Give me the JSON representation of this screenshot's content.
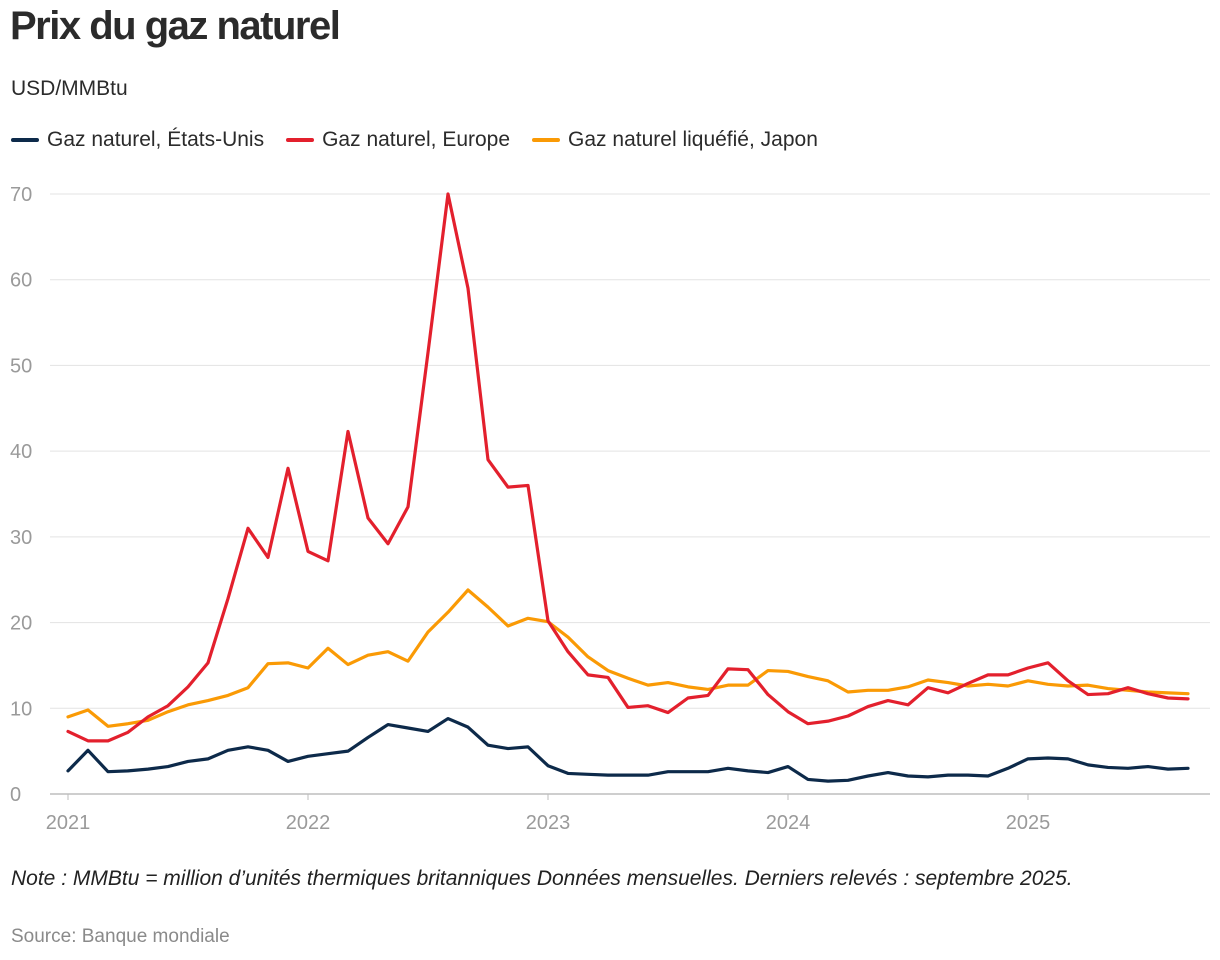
{
  "chart_data": {
    "type": "line",
    "title": "Prix du gaz naturel",
    "subtitle": "USD/MMBtu",
    "ylim": [
      0,
      70
    ],
    "yticks": [
      "0",
      "10",
      "20",
      "30",
      "40",
      "50",
      "60",
      "70"
    ],
    "xlim": [
      2021,
      2025.75
    ],
    "xticks": [
      {
        "value": 2021,
        "label": "2021"
      },
      {
        "value": 2022,
        "label": "2022"
      },
      {
        "value": 2023,
        "label": "2023"
      },
      {
        "value": 2024,
        "label": "2024"
      },
      {
        "value": 2025,
        "label": "2025"
      }
    ],
    "x_start": 2021.0,
    "x_step_months": 1,
    "grid": true,
    "legend_position": "top-left",
    "series": [
      {
        "name": "Gaz naturel, États-Unis",
        "color": "#0d2a4a",
        "values": [
          2.7,
          5.1,
          2.6,
          2.7,
          2.9,
          3.2,
          3.8,
          4.1,
          5.1,
          5.5,
          5.1,
          3.8,
          4.4,
          4.7,
          5.0,
          6.6,
          8.1,
          7.7,
          7.3,
          8.8,
          7.8,
          5.7,
          5.3,
          5.5,
          3.3,
          2.4,
          2.3,
          2.2,
          2.2,
          2.2,
          2.6,
          2.6,
          2.6,
          3.0,
          2.7,
          2.5,
          3.2,
          1.7,
          1.5,
          1.6,
          2.1,
          2.5,
          2.1,
          2.0,
          2.2,
          2.2,
          2.1,
          3.0,
          4.1,
          4.2,
          4.1,
          3.4,
          3.1,
          3.0,
          3.2,
          2.9,
          3.0
        ]
      },
      {
        "name": "Gaz naturel, Europe",
        "color": "#e3202d",
        "values": [
          7.3,
          6.2,
          6.2,
          7.2,
          9.0,
          10.3,
          12.5,
          15.3,
          22.8,
          31.0,
          27.6,
          38.0,
          28.3,
          27.2,
          42.3,
          32.2,
          29.2,
          33.5,
          51.5,
          70.0,
          59.0,
          39.0,
          35.8,
          36.0,
          20.2,
          16.6,
          13.9,
          13.6,
          10.1,
          10.3,
          9.5,
          11.2,
          11.5,
          14.6,
          14.5,
          11.6,
          9.6,
          8.2,
          8.5,
          9.1,
          10.2,
          10.9,
          10.4,
          12.4,
          11.8,
          12.9,
          13.9,
          13.9,
          14.7,
          15.3,
          13.2,
          11.6,
          11.7,
          12.4,
          11.7,
          11.2,
          11.1
        ]
      },
      {
        "name": "Gaz naturel liquéfié, Japon",
        "color": "#fa9a05",
        "values": [
          9.0,
          9.8,
          7.9,
          8.2,
          8.6,
          9.6,
          10.4,
          10.9,
          11.5,
          12.4,
          15.2,
          15.3,
          14.7,
          17.0,
          15.1,
          16.2,
          16.6,
          15.5,
          18.9,
          21.2,
          23.8,
          21.8,
          19.6,
          20.5,
          20.1,
          18.3,
          16.0,
          14.4,
          13.5,
          12.7,
          13.0,
          12.5,
          12.2,
          12.7,
          12.7,
          14.4,
          14.3,
          13.7,
          13.2,
          11.9,
          12.1,
          12.1,
          12.5,
          13.3,
          13.0,
          12.6,
          12.8,
          12.6,
          13.2,
          12.8,
          12.6,
          12.7,
          12.3,
          12.1,
          11.9,
          11.8,
          11.7
        ]
      }
    ],
    "note": "Note : MMBtu = million d’unités thermiques britanniques Données mensuelles. Derniers relevés : septembre 2025.",
    "source": "Source: Banque mondiale"
  }
}
